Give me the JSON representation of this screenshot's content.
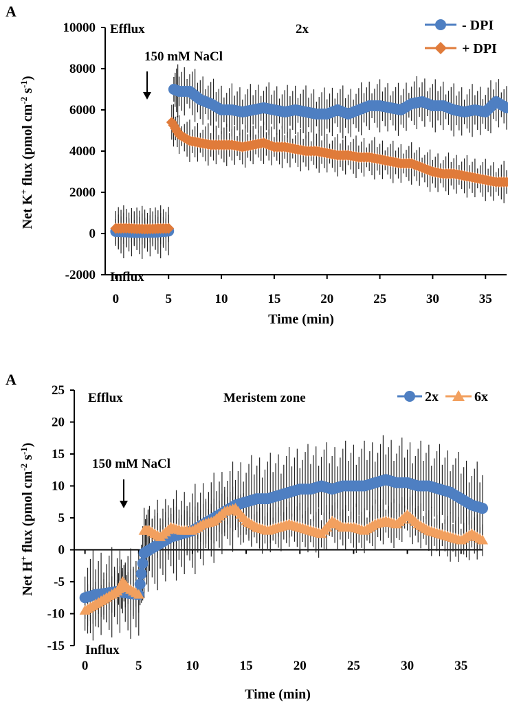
{
  "chart_data": [
    {
      "type": "line",
      "panel_label": "A",
      "title": "2x",
      "xlabel": "Time (min)",
      "ylabel_parts": [
        "Net K",
        "+",
        " flux (pmol cm",
        "-2",
        " s",
        "-1",
        ")"
      ],
      "xlim": [
        -1,
        37
      ],
      "ylim": [
        -2000,
        10000
      ],
      "xticks": [
        "0",
        "5",
        "10",
        "15",
        "20",
        "25",
        "30",
        "35"
      ],
      "yticks": [
        "10000",
        "8000",
        "6000",
        "4000",
        "2000",
        "0",
        "-2000"
      ],
      "annotations": {
        "top": "Efflux",
        "bottom": "Influx",
        "treatment": "150 mM NaCl"
      },
      "treatment_time": 5,
      "series": [
        {
          "name": "- DPI",
          "color": "#4e7fc2",
          "marker": "circle",
          "points": [
            [
              0,
              100
            ],
            [
              1,
              80
            ],
            [
              2,
              50
            ],
            [
              3,
              60
            ],
            [
              4,
              70
            ],
            [
              5,
              120
            ],
            [
              5.5,
              7000
            ],
            [
              6,
              6900
            ],
            [
              7,
              6900
            ],
            [
              8,
              6500
            ],
            [
              9,
              6300
            ],
            [
              10,
              6000
            ],
            [
              11,
              6000
            ],
            [
              12,
              5900
            ],
            [
              13,
              6000
            ],
            [
              14,
              6100
            ],
            [
              15,
              6000
            ],
            [
              16,
              5900
            ],
            [
              17,
              6000
            ],
            [
              18,
              5900
            ],
            [
              19,
              5800
            ],
            [
              20,
              5800
            ],
            [
              21,
              6000
            ],
            [
              22,
              5800
            ],
            [
              23,
              6000
            ],
            [
              24,
              6200
            ],
            [
              25,
              6200
            ],
            [
              26,
              6100
            ],
            [
              27,
              6000
            ],
            [
              28,
              6300
            ],
            [
              29,
              6400
            ],
            [
              30,
              6200
            ],
            [
              31,
              6200
            ],
            [
              32,
              6000
            ],
            [
              33,
              5900
            ],
            [
              34,
              6000
            ],
            [
              35,
              5900
            ],
            [
              36,
              6400
            ],
            [
              37,
              6100
            ]
          ],
          "error": 1000
        },
        {
          "name": "+ DPI",
          "color": "#e07b3a",
          "marker": "diamond",
          "points": [
            [
              0,
              250
            ],
            [
              1,
              260
            ],
            [
              2,
              230
            ],
            [
              3,
              220
            ],
            [
              4,
              240
            ],
            [
              5,
              250
            ],
            [
              5.3,
              5400
            ],
            [
              6,
              4800
            ],
            [
              7,
              4500
            ],
            [
              8,
              4400
            ],
            [
              9,
              4300
            ],
            [
              10,
              4300
            ],
            [
              11,
              4300
            ],
            [
              12,
              4200
            ],
            [
              13,
              4300
            ],
            [
              14,
              4400
            ],
            [
              15,
              4200
            ],
            [
              16,
              4200
            ],
            [
              17,
              4100
            ],
            [
              18,
              4000
            ],
            [
              19,
              4000
            ],
            [
              20,
              3900
            ],
            [
              21,
              3800
            ],
            [
              22,
              3800
            ],
            [
              23,
              3700
            ],
            [
              24,
              3700
            ],
            [
              25,
              3600
            ],
            [
              26,
              3500
            ],
            [
              27,
              3400
            ],
            [
              28,
              3400
            ],
            [
              29,
              3200
            ],
            [
              30,
              3000
            ],
            [
              31,
              2900
            ],
            [
              32,
              2900
            ],
            [
              33,
              2800
            ],
            [
              34,
              2700
            ],
            [
              35,
              2600
            ],
            [
              36,
              2500
            ],
            [
              37,
              2500
            ]
          ],
          "error": 800
        }
      ]
    },
    {
      "type": "line",
      "panel_label": "A",
      "title": "Meristem zone",
      "xlabel": "Time (min)",
      "ylabel_parts": [
        "Net H",
        "+",
        " flux (pmol cm",
        "-2",
        " s",
        "-1",
        ")"
      ],
      "xlim": [
        -1,
        37
      ],
      "ylim": [
        -15,
        25
      ],
      "xticks": [
        "0",
        "5",
        "10",
        "15",
        "20",
        "25",
        "30",
        "35"
      ],
      "yticks": [
        "25",
        "20",
        "15",
        "10",
        "5",
        "0",
        "-5",
        "-10",
        "-15"
      ],
      "annotations": {
        "top": "Efflux",
        "bottom": "Influx",
        "treatment": "150 mM NaCl"
      },
      "treatment_time": 4.5,
      "series": [
        {
          "name": "2x",
          "color": "#4e7fc2",
          "marker": "circle",
          "points": [
            [
              0,
              -7.5
            ],
            [
              1,
              -7
            ],
            [
              2,
              -6.8
            ],
            [
              3,
              -6.5
            ],
            [
              4,
              -6.8
            ],
            [
              5,
              -7
            ],
            [
              5.5,
              -0.5
            ],
            [
              6,
              0
            ],
            [
              7,
              1
            ],
            [
              8,
              2
            ],
            [
              9,
              2.5
            ],
            [
              10,
              3
            ],
            [
              11,
              4
            ],
            [
              12,
              5
            ],
            [
              13,
              6
            ],
            [
              14,
              7
            ],
            [
              15,
              7.5
            ],
            [
              16,
              8
            ],
            [
              17,
              8
            ],
            [
              18,
              8.5
            ],
            [
              19,
              9
            ],
            [
              20,
              9.5
            ],
            [
              21,
              9.5
            ],
            [
              22,
              10
            ],
            [
              23,
              9.5
            ],
            [
              24,
              10
            ],
            [
              25,
              10
            ],
            [
              26,
              10
            ],
            [
              27,
              10.5
            ],
            [
              28,
              11
            ],
            [
              29,
              10.5
            ],
            [
              30,
              10.5
            ],
            [
              31,
              10
            ],
            [
              32,
              10
            ],
            [
              33,
              9.5
            ],
            [
              34,
              9
            ],
            [
              35,
              8
            ],
            [
              36,
              7
            ],
            [
              37,
              6.5
            ]
          ],
          "error": 5.5
        },
        {
          "name": "6x",
          "color": "#f2a05f",
          "marker": "triangle",
          "points": [
            [
              0,
              -9.5
            ],
            [
              1,
              -8.5
            ],
            [
              2,
              -7.5
            ],
            [
              3,
              -6.5
            ],
            [
              3.5,
              -5
            ],
            [
              4,
              -6
            ],
            [
              5,
              -7
            ],
            [
              5.5,
              3
            ],
            [
              6,
              3
            ],
            [
              7,
              2
            ],
            [
              8,
              3.5
            ],
            [
              9,
              3
            ],
            [
              10,
              3
            ],
            [
              11,
              4
            ],
            [
              12,
              4.5
            ],
            [
              13,
              6
            ],
            [
              14,
              6.5
            ],
            [
              15,
              4.5
            ],
            [
              16,
              3.5
            ],
            [
              17,
              3
            ],
            [
              18,
              3.5
            ],
            [
              19,
              4
            ],
            [
              20,
              3.5
            ],
            [
              21,
              3
            ],
            [
              22,
              2.5
            ],
            [
              23,
              4.5
            ],
            [
              24,
              3.5
            ],
            [
              25,
              3.5
            ],
            [
              26,
              3
            ],
            [
              27,
              4
            ],
            [
              28,
              4.5
            ],
            [
              29,
              4
            ],
            [
              30,
              5.5
            ],
            [
              31,
              4
            ],
            [
              32,
              3
            ],
            [
              33,
              2.5
            ],
            [
              34,
              2
            ],
            [
              35,
              1.5
            ],
            [
              36,
              2.5
            ],
            [
              37,
              1.5
            ]
          ],
          "error": 3
        }
      ]
    }
  ]
}
